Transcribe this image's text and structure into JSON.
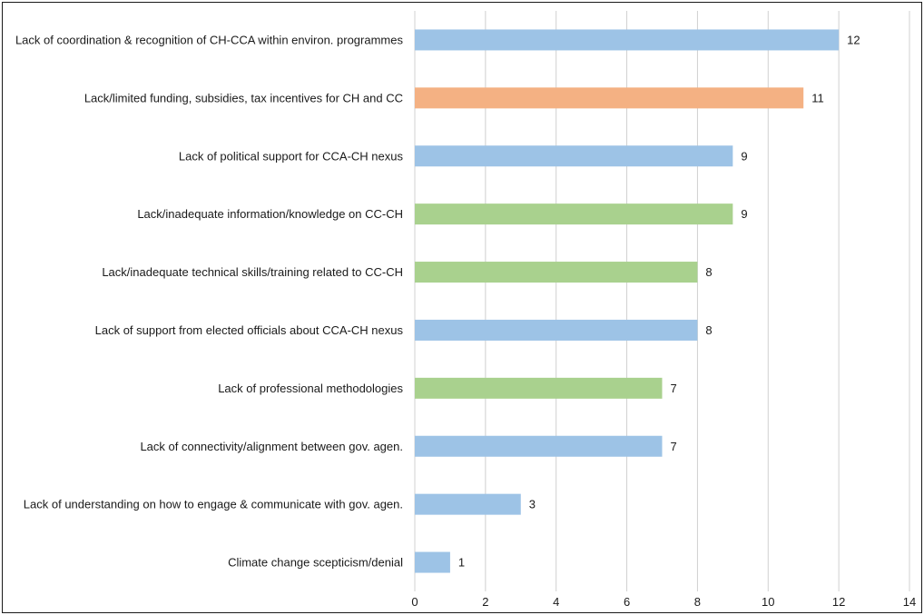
{
  "chart_data": {
    "type": "bar",
    "orientation": "horizontal",
    "title": "",
    "xlabel": "",
    "ylabel": "",
    "xlim": [
      0,
      14
    ],
    "x_ticks": [
      0,
      2,
      4,
      6,
      8,
      10,
      12,
      14
    ],
    "grid": "vertical",
    "legend": "none",
    "categories": [
      "Lack of coordination & recognition of CH-CCA within environ. programmes",
      "Lack/limited funding, subsidies, tax incentives for CH and CC",
      "Lack of political support for CCA-CH nexus",
      "Lack/inadequate information/knowledge on CC-CH",
      "Lack/inadequate technical skills/training related to CC-CH",
      "Lack of support from elected officials about CCA-CH nexus",
      "Lack of professional methodologies",
      "Lack of connectivity/alignment between gov. agen.",
      "Lack of understanding on how to engage & communicate with gov. agen.",
      "Climate change scepticism/denial"
    ],
    "values": [
      12,
      11,
      9,
      9,
      8,
      8,
      7,
      7,
      3,
      1
    ],
    "bar_colors": [
      "#9dc3e6",
      "#f4b183",
      "#9dc3e6",
      "#a9d18e",
      "#a9d18e",
      "#9dc3e6",
      "#a9d18e",
      "#9dc3e6",
      "#9dc3e6",
      "#9dc3e6"
    ]
  }
}
